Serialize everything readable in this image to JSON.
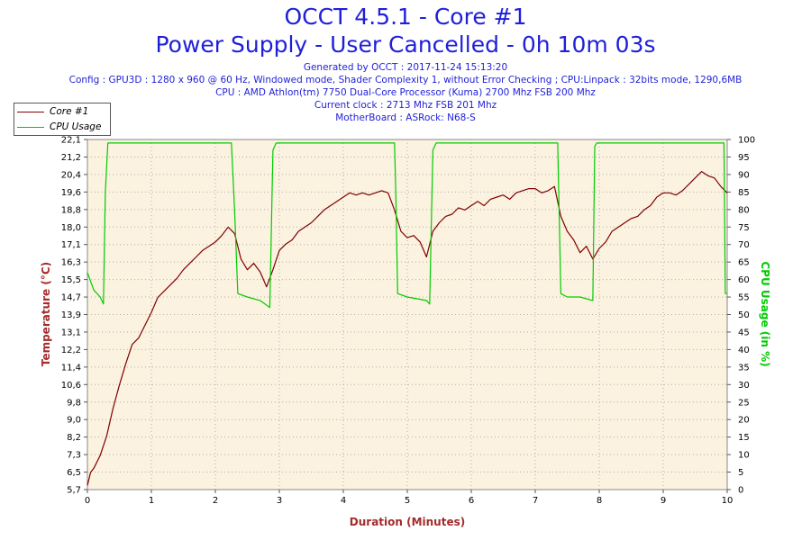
{
  "header": {
    "title_line1": "OCCT 4.5.1 - Core #1",
    "title_line2": "Power Supply - User Cancelled - 0h 10m 03s",
    "generated": "Generated by OCCT : 2017-11-24 15:13:20",
    "config": "Config : GPU3D : 1280 x 960 @ 60 Hz, Windowed mode, Shader Complexity 1, without Error Checking ; CPU:Linpack : 32bits mode, 1290,6MB",
    "cpu": "CPU : AMD Athlon(tm) 7750 Dual-Core Processor (Kuma) 2700 Mhz FSB 200 Mhz",
    "clock": "Current clock : 2713 Mhz FSB 201 Mhz",
    "motherboard": "MotherBoard : ASRock: N68-S"
  },
  "legend": [
    {
      "label": "Core #1",
      "color": "#800000"
    },
    {
      "label": "CPU Usage",
      "color": "#00cc00"
    }
  ],
  "chart_data": {
    "type": "line",
    "title": "OCCT 4.5.1 - Core #1",
    "subtitle": "Power Supply - User Cancelled - 0h 10m 03s",
    "xlabel": "Duration (Minutes)",
    "ylabel": "Temperature (°C)",
    "y2label": "CPU Usage (in %)",
    "xlim": [
      0,
      10
    ],
    "ylim": [
      5.7,
      22.1
    ],
    "y2lim": [
      0,
      100
    ],
    "x_ticks": [
      "0",
      "1",
      "2",
      "3",
      "4",
      "5",
      "6",
      "7",
      "8",
      "9",
      "10"
    ],
    "y_ticks": [
      "5,7",
      "6,5",
      "7,3",
      "8,2",
      "9,0",
      "9,8",
      "10,6",
      "11,4",
      "12,2",
      "13,1",
      "13,9",
      "14,7",
      "15,5",
      "16,3",
      "17,1",
      "18,0",
      "18,8",
      "19,6",
      "20,4",
      "21,2",
      "22,1"
    ],
    "y2_ticks": [
      "0",
      "5",
      "10",
      "15",
      "20",
      "25",
      "30",
      "35",
      "40",
      "45",
      "50",
      "55",
      "60",
      "65",
      "70",
      "75",
      "80",
      "85",
      "90",
      "95",
      "100"
    ],
    "grid": true,
    "legend_position": "top-left",
    "series": [
      {
        "name": "Core #1",
        "axis": "left",
        "color": "#800000",
        "x": [
          0,
          0.05,
          0.1,
          0.2,
          0.3,
          0.4,
          0.5,
          0.6,
          0.7,
          0.8,
          0.9,
          1.0,
          1.1,
          1.2,
          1.3,
          1.4,
          1.5,
          1.6,
          1.7,
          1.8,
          1.9,
          2.0,
          2.1,
          2.2,
          2.3,
          2.4,
          2.5,
          2.6,
          2.7,
          2.8,
          2.9,
          3.0,
          3.1,
          3.2,
          3.3,
          3.4,
          3.5,
          3.6,
          3.7,
          3.8,
          3.9,
          4.0,
          4.1,
          4.2,
          4.3,
          4.4,
          4.5,
          4.6,
          4.7,
          4.8,
          4.9,
          5.0,
          5.1,
          5.2,
          5.3,
          5.4,
          5.5,
          5.6,
          5.7,
          5.8,
          5.9,
          6.0,
          6.1,
          6.2,
          6.3,
          6.4,
          6.5,
          6.6,
          6.7,
          6.8,
          6.9,
          7.0,
          7.1,
          7.2,
          7.3,
          7.4,
          7.5,
          7.6,
          7.7,
          7.8,
          7.9,
          8.0,
          8.1,
          8.2,
          8.3,
          8.4,
          8.5,
          8.6,
          8.7,
          8.8,
          8.9,
          9.0,
          9.1,
          9.2,
          9.3,
          9.4,
          9.5,
          9.6,
          9.7,
          9.8,
          9.9,
          10.0
        ],
        "values": [
          5.9,
          6.5,
          6.7,
          7.3,
          8.2,
          9.5,
          10.6,
          11.6,
          12.5,
          12.8,
          13.4,
          14.0,
          14.7,
          15.0,
          15.3,
          15.6,
          16.0,
          16.3,
          16.6,
          16.9,
          17.1,
          17.3,
          17.6,
          18.0,
          17.7,
          16.5,
          16.0,
          16.3,
          15.9,
          15.2,
          16.0,
          16.9,
          17.2,
          17.4,
          17.8,
          18.0,
          18.2,
          18.5,
          18.8,
          19.0,
          19.2,
          19.4,
          19.6,
          19.5,
          19.6,
          19.5,
          19.6,
          19.7,
          19.6,
          18.8,
          17.8,
          17.5,
          17.6,
          17.3,
          16.6,
          17.8,
          18.2,
          18.5,
          18.6,
          18.9,
          18.8,
          19.0,
          19.2,
          19.0,
          19.3,
          19.4,
          19.5,
          19.3,
          19.6,
          19.7,
          19.8,
          19.8,
          19.6,
          19.7,
          19.9,
          18.5,
          17.8,
          17.4,
          16.8,
          17.1,
          16.5,
          17.0,
          17.3,
          17.8,
          18.0,
          18.2,
          18.4,
          18.5,
          18.8,
          19.0,
          19.4,
          19.6,
          19.6,
          19.5,
          19.7,
          20.0,
          20.3,
          20.6,
          20.4,
          20.3,
          19.9,
          19.6
        ]
      },
      {
        "name": "CPU Usage",
        "axis": "right",
        "color": "#00cc00",
        "x": [
          0,
          0.1,
          0.2,
          0.25,
          0.28,
          0.32,
          1.0,
          2.0,
          2.25,
          2.3,
          2.35,
          2.5,
          2.7,
          2.85,
          2.9,
          2.95,
          3.5,
          4.2,
          4.8,
          4.82,
          4.85,
          5.0,
          5.3,
          5.35,
          5.4,
          5.45,
          6.0,
          7.0,
          7.35,
          7.4,
          7.5,
          7.7,
          7.9,
          7.93,
          7.96,
          8.5,
          9.5,
          9.95,
          9.97,
          10.0
        ],
        "values": [
          62,
          57,
          55,
          53,
          85,
          99,
          99,
          99,
          99,
          80,
          56,
          55,
          54,
          52,
          97,
          99,
          99,
          99,
          99,
          85,
          56,
          55,
          54,
          53,
          97,
          99,
          99,
          99,
          99,
          56,
          55,
          55,
          54,
          98,
          99,
          99,
          99,
          99,
          56,
          56
        ]
      }
    ]
  }
}
